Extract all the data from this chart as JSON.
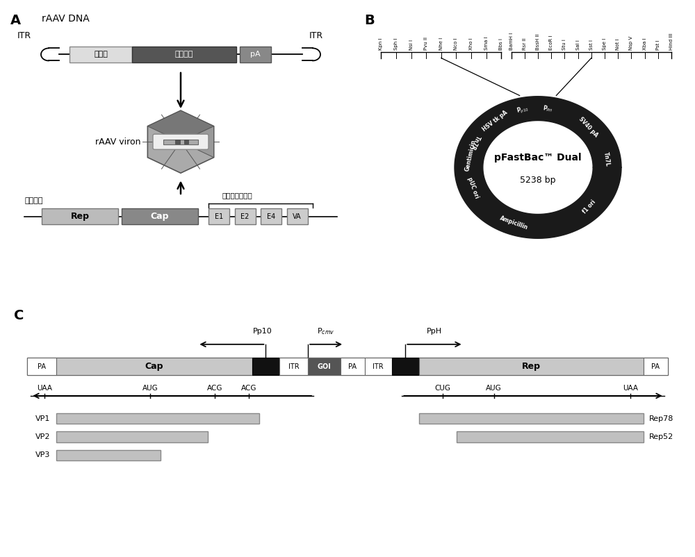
{
  "bg_color": "#ffffff",
  "rAAV_DNA_text": "rAAV DNA",
  "ITR_text": "ITR",
  "rAAV_viron_text": "rAAV viron",
  "promoter_text": "启动子",
  "foreign_gene_text": "外源基因",
  "pA_text": "pA",
  "package_factor_text": "包装因子",
  "adeno_helper_text": "腺病毒辅助基因",
  "Rep_text": "Rep",
  "Cap_text": "Cap",
  "pFastBac_title": "pFastBac™ Dual",
  "pFastBac_bp": "5238 bp",
  "plasmid_labels_left": [
    "Kpn I",
    "Sph I",
    "Nsi I",
    "Pvu II",
    "Nhe I",
    "Nco I",
    "Xho I",
    "Sma I",
    "Bbs I"
  ],
  "plasmid_labels_right": [
    "BamH I",
    "Rsr II",
    "BssH II",
    "EcoR I",
    "Stu I",
    "Sal I",
    "Sst I",
    "Spe I",
    "Not I",
    "Nsp V",
    "Xba I",
    "Pst I",
    "Hind III"
  ]
}
